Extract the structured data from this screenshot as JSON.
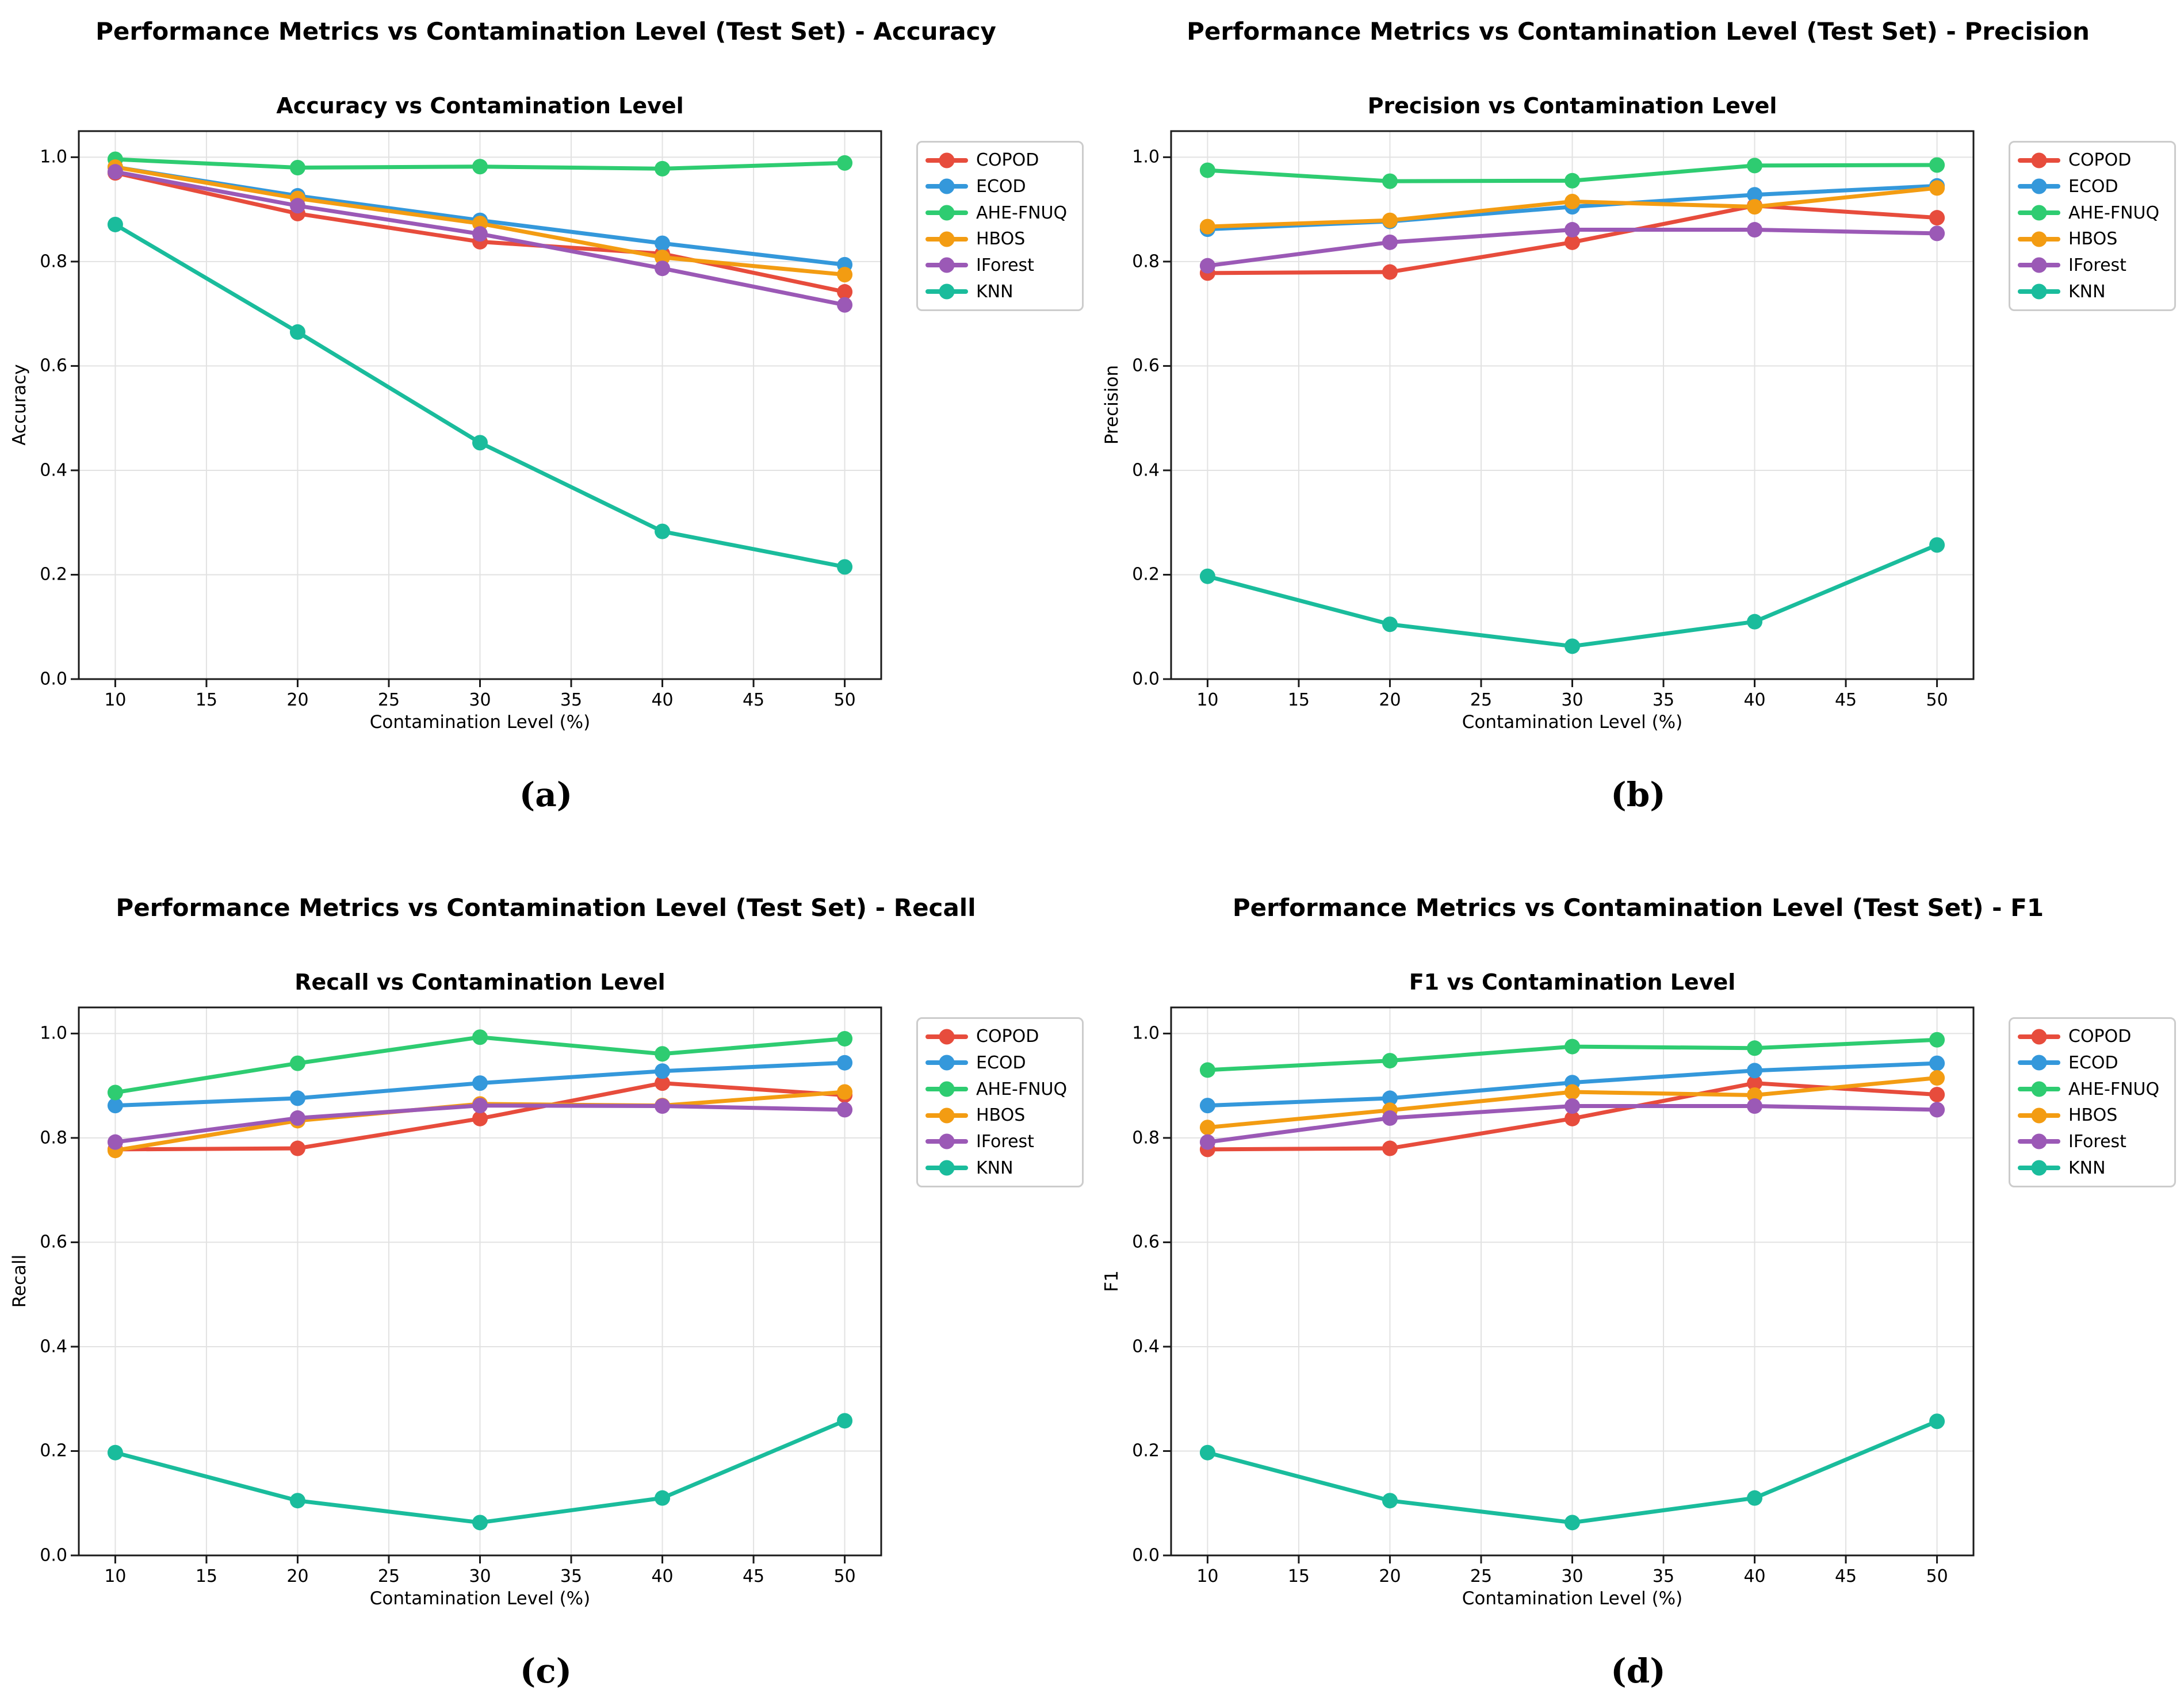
{
  "figure": {
    "background": "#ffffff",
    "grid_color": "#e2e2e2",
    "axis_color": "#1a1a1a",
    "legend_border_color": "#cccccc"
  },
  "chart_data": [
    {
      "type": "line",
      "suptitle": "Performance Metrics vs Contamination Level (Test Set) - Accuracy",
      "title": "Accuracy vs Contamination Level",
      "xlabel": "Contamination Level (%)",
      "ylabel": "Accuracy",
      "caption": "(a)",
      "x": [
        10,
        20,
        30,
        40,
        50
      ],
      "xticks": [
        10,
        15,
        20,
        25,
        30,
        35,
        40,
        45,
        50
      ],
      "yticks": [
        "0.0",
        "0.2",
        "0.4",
        "0.6",
        "0.8",
        "1.0"
      ],
      "xlim": [
        8,
        52
      ],
      "ylim": [
        0,
        1.05
      ],
      "grid": true,
      "legend_position": "outside-right",
      "series": [
        {
          "name": "COPOD",
          "color": "#e74c3c",
          "values": [
            0.97,
            0.892,
            0.838,
            0.815,
            0.742
          ]
        },
        {
          "name": "ECOD",
          "color": "#3498db",
          "values": [
            0.981,
            0.926,
            0.879,
            0.835,
            0.794
          ]
        },
        {
          "name": "AHE-FNUQ",
          "color": "#2ecc71",
          "values": [
            0.996,
            0.98,
            0.982,
            0.978,
            0.989
          ]
        },
        {
          "name": "HBOS",
          "color": "#f39c12",
          "values": [
            0.981,
            0.921,
            0.873,
            0.808,
            0.775
          ]
        },
        {
          "name": "IForest",
          "color": "#9b59b6",
          "values": [
            0.972,
            0.907,
            0.853,
            0.787,
            0.717
          ]
        },
        {
          "name": "KNN",
          "color": "#1abc9c",
          "values": [
            0.871,
            0.665,
            0.453,
            0.283,
            0.215
          ]
        }
      ]
    },
    {
      "type": "line",
      "suptitle": "Performance Metrics vs Contamination Level (Test Set) - Precision",
      "title": "Precision vs Contamination Level",
      "xlabel": "Contamination Level (%)",
      "ylabel": "Precision",
      "caption": "(b)",
      "x": [
        10,
        20,
        30,
        40,
        50
      ],
      "xticks": [
        10,
        15,
        20,
        25,
        30,
        35,
        40,
        45,
        50
      ],
      "yticks": [
        "0.0",
        "0.2",
        "0.4",
        "0.6",
        "0.8",
        "1.0"
      ],
      "xlim": [
        8,
        52
      ],
      "ylim": [
        0,
        1.05
      ],
      "grid": true,
      "legend_position": "outside-right",
      "series": [
        {
          "name": "COPOD",
          "color": "#e74c3c",
          "values": [
            0.778,
            0.78,
            0.837,
            0.907,
            0.884
          ]
        },
        {
          "name": "ECOD",
          "color": "#3498db",
          "values": [
            0.862,
            0.877,
            0.905,
            0.928,
            0.945
          ]
        },
        {
          "name": "AHE-FNUQ",
          "color": "#2ecc71",
          "values": [
            0.975,
            0.954,
            0.955,
            0.984,
            0.985
          ]
        },
        {
          "name": "HBOS",
          "color": "#f39c12",
          "values": [
            0.867,
            0.879,
            0.915,
            0.905,
            0.941
          ]
        },
        {
          "name": "IForest",
          "color": "#9b59b6",
          "values": [
            0.792,
            0.837,
            0.861,
            0.861,
            0.854
          ]
        },
        {
          "name": "KNN",
          "color": "#1abc9c",
          "values": [
            0.197,
            0.105,
            0.063,
            0.11,
            0.257
          ]
        }
      ]
    },
    {
      "type": "line",
      "suptitle": "Performance Metrics vs Contamination Level (Test Set) - Recall",
      "title": "Recall vs Contamination Level",
      "xlabel": "Contamination Level (%)",
      "ylabel": "Recall",
      "caption": "(c)",
      "x": [
        10,
        20,
        30,
        40,
        50
      ],
      "xticks": [
        10,
        15,
        20,
        25,
        30,
        35,
        40,
        45,
        50
      ],
      "yticks": [
        "0.0",
        "0.2",
        "0.4",
        "0.6",
        "0.8",
        "1.0"
      ],
      "xlim": [
        8,
        52
      ],
      "ylim": [
        0,
        1.05
      ],
      "grid": true,
      "legend_position": "outside-right",
      "series": [
        {
          "name": "COPOD",
          "color": "#e74c3c",
          "values": [
            0.778,
            0.78,
            0.837,
            0.905,
            0.882
          ]
        },
        {
          "name": "ECOD",
          "color": "#3498db",
          "values": [
            0.862,
            0.876,
            0.905,
            0.928,
            0.944
          ]
        },
        {
          "name": "AHE-FNUQ",
          "color": "#2ecc71",
          "values": [
            0.887,
            0.943,
            0.993,
            0.961,
            0.99
          ]
        },
        {
          "name": "HBOS",
          "color": "#f39c12",
          "values": [
            0.776,
            0.833,
            0.865,
            0.862,
            0.888
          ]
        },
        {
          "name": "IForest",
          "color": "#9b59b6",
          "values": [
            0.792,
            0.838,
            0.862,
            0.861,
            0.854
          ]
        },
        {
          "name": "KNN",
          "color": "#1abc9c",
          "values": [
            0.197,
            0.105,
            0.063,
            0.11,
            0.258
          ]
        }
      ]
    },
    {
      "type": "line",
      "suptitle": "Performance Metrics vs Contamination Level (Test Set) - F1",
      "title": "F1 vs Contamination Level",
      "xlabel": "Contamination Level (%)",
      "ylabel": "F1",
      "caption": "(d)",
      "x": [
        10,
        20,
        30,
        40,
        50
      ],
      "xticks": [
        10,
        15,
        20,
        25,
        30,
        35,
        40,
        45,
        50
      ],
      "yticks": [
        "0.0",
        "0.2",
        "0.4",
        "0.6",
        "0.8",
        "1.0"
      ],
      "xlim": [
        8,
        52
      ],
      "ylim": [
        0,
        1.05
      ],
      "grid": true,
      "legend_position": "outside-right",
      "series": [
        {
          "name": "COPOD",
          "color": "#e74c3c",
          "values": [
            0.778,
            0.78,
            0.837,
            0.905,
            0.883
          ]
        },
        {
          "name": "ECOD",
          "color": "#3498db",
          "values": [
            0.862,
            0.876,
            0.906,
            0.929,
            0.943
          ]
        },
        {
          "name": "AHE-FNUQ",
          "color": "#2ecc71",
          "values": [
            0.93,
            0.948,
            0.975,
            0.972,
            0.988
          ]
        },
        {
          "name": "HBOS",
          "color": "#f39c12",
          "values": [
            0.82,
            0.853,
            0.888,
            0.882,
            0.915
          ]
        },
        {
          "name": "IForest",
          "color": "#9b59b6",
          "values": [
            0.792,
            0.838,
            0.861,
            0.861,
            0.854
          ]
        },
        {
          "name": "KNN",
          "color": "#1abc9c",
          "values": [
            0.197,
            0.105,
            0.063,
            0.11,
            0.257
          ]
        }
      ]
    }
  ]
}
